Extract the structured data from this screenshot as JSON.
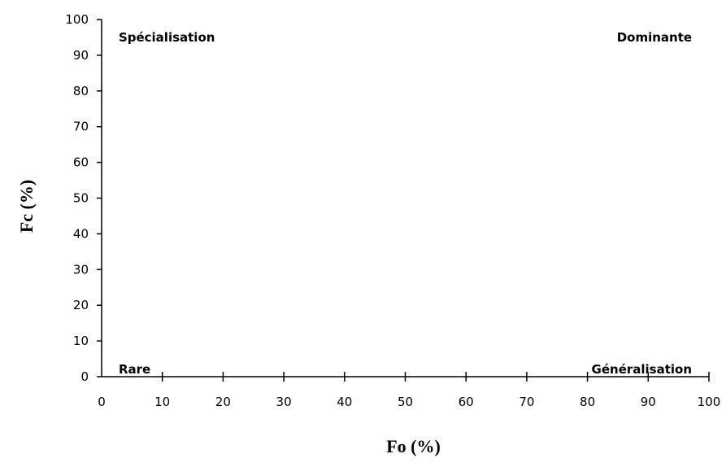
{
  "chart_data": {
    "type": "scatter",
    "title": "",
    "xlabel": "Fo (%)",
    "ylabel": "Fc (%)",
    "xlim": [
      0,
      100
    ],
    "ylim": [
      0,
      100
    ],
    "x_ticks": [
      0,
      10,
      20,
      30,
      40,
      50,
      60,
      70,
      80,
      90,
      100
    ],
    "y_ticks": [
      0,
      10,
      20,
      30,
      40,
      50,
      60,
      70,
      80,
      90,
      100
    ],
    "grid": false,
    "series": [],
    "annotations": [
      {
        "text": "Spécialisation",
        "x": 2,
        "y": 95
      },
      {
        "text": "Dominante",
        "x": 98,
        "y": 95
      },
      {
        "text": "Rare",
        "x": 2,
        "y": 2
      },
      {
        "text": "Généralisation",
        "x": 98,
        "y": 2
      }
    ]
  }
}
